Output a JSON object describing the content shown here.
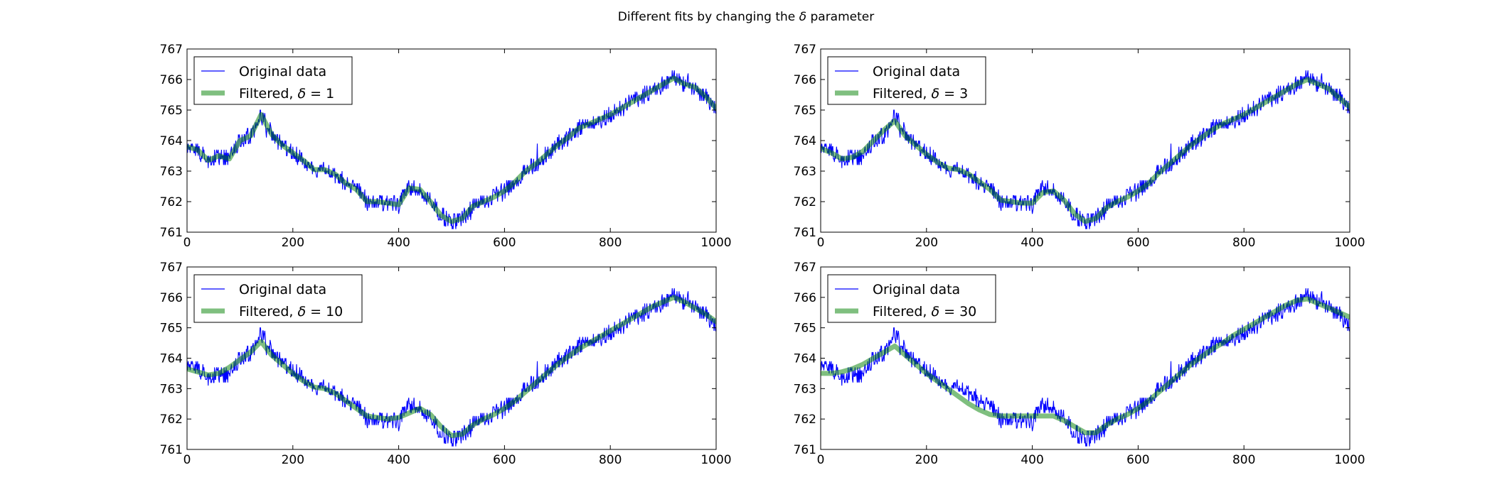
{
  "figure": {
    "title_prefix": "Different fits by changing the ",
    "title_symbol": "δ",
    "title_suffix": " parameter"
  },
  "colors": {
    "original": "#0000ff",
    "filtered": "#008000",
    "filtered_opacity": 0.5,
    "axes": "#000000",
    "background": "#ffffff"
  },
  "chart_data": [
    {
      "type": "line",
      "xlim": [
        0,
        1000
      ],
      "ylim": [
        761,
        767
      ],
      "xticks": [
        0,
        200,
        400,
        600,
        800,
        1000
      ],
      "yticks": [
        761,
        762,
        763,
        764,
        765,
        766,
        767
      ],
      "grid": false,
      "legend_position": "upper-left",
      "series": [
        {
          "name": "Original data",
          "style": "thin-line",
          "color": "#0000ff"
        },
        {
          "name": "Filtered, δ = 1",
          "label_prefix": "Filtered, ",
          "label_symbol": "δ",
          "label_value": " = 1",
          "style": "thick-line",
          "color": "#008000",
          "x": [
            0,
            20,
            40,
            60,
            80,
            100,
            120,
            140,
            160,
            180,
            200,
            220,
            240,
            260,
            280,
            300,
            320,
            340,
            360,
            380,
            400,
            420,
            440,
            460,
            480,
            500,
            520,
            540,
            560,
            580,
            600,
            620,
            640,
            660,
            680,
            700,
            720,
            740,
            760,
            780,
            800,
            820,
            840,
            860,
            880,
            900,
            920,
            940,
            960,
            980,
            1000
          ],
          "y": [
            763.8,
            763.7,
            763.35,
            763.5,
            763.4,
            764.0,
            764.15,
            764.85,
            764.2,
            763.85,
            763.6,
            763.35,
            763.05,
            763.05,
            762.9,
            762.6,
            762.4,
            762.0,
            762.0,
            761.95,
            761.9,
            762.45,
            762.4,
            762.0,
            761.55,
            761.35,
            761.45,
            761.85,
            762.0,
            762.15,
            762.35,
            762.65,
            763.0,
            763.25,
            763.55,
            763.85,
            764.1,
            764.4,
            764.55,
            764.7,
            764.85,
            765.05,
            765.25,
            765.45,
            765.65,
            765.85,
            766.05,
            765.85,
            765.75,
            765.45,
            765.05
          ]
        }
      ]
    },
    {
      "type": "line",
      "xlim": [
        0,
        1000
      ],
      "ylim": [
        761,
        767
      ],
      "xticks": [
        0,
        200,
        400,
        600,
        800,
        1000
      ],
      "yticks": [
        761,
        762,
        763,
        764,
        765,
        766,
        767
      ],
      "grid": false,
      "legend_position": "upper-left",
      "series": [
        {
          "name": "Original data",
          "style": "thin-line",
          "color": "#0000ff"
        },
        {
          "name": "Filtered, δ = 3",
          "label_prefix": "Filtered, ",
          "label_symbol": "δ",
          "label_value": " = 3",
          "style": "thick-line",
          "color": "#008000",
          "x": [
            0,
            20,
            40,
            60,
            80,
            100,
            120,
            140,
            160,
            180,
            200,
            220,
            240,
            260,
            280,
            300,
            320,
            340,
            360,
            380,
            400,
            420,
            440,
            460,
            480,
            500,
            520,
            540,
            560,
            580,
            600,
            620,
            640,
            660,
            680,
            700,
            720,
            740,
            760,
            780,
            800,
            820,
            840,
            860,
            880,
            900,
            920,
            940,
            960,
            980,
            1000
          ],
          "y": [
            763.75,
            763.6,
            763.4,
            763.45,
            763.65,
            764.0,
            764.35,
            764.65,
            764.15,
            763.85,
            763.55,
            763.3,
            763.1,
            763.05,
            762.9,
            762.65,
            762.4,
            762.05,
            762.0,
            761.95,
            761.95,
            762.3,
            762.35,
            762.05,
            761.6,
            761.35,
            761.45,
            761.8,
            762.0,
            762.15,
            762.35,
            762.6,
            762.95,
            763.25,
            763.55,
            763.85,
            764.1,
            764.35,
            764.55,
            764.7,
            764.85,
            765.05,
            765.25,
            765.45,
            765.65,
            765.85,
            766.0,
            765.85,
            765.7,
            765.4,
            765.1
          ]
        }
      ]
    },
    {
      "type": "line",
      "xlim": [
        0,
        1000
      ],
      "ylim": [
        761,
        767
      ],
      "xticks": [
        0,
        200,
        400,
        600,
        800,
        1000
      ],
      "yticks": [
        761,
        762,
        763,
        764,
        765,
        766,
        767
      ],
      "grid": false,
      "legend_position": "upper-left",
      "series": [
        {
          "name": "Original data",
          "style": "thin-line",
          "color": "#0000ff"
        },
        {
          "name": "Filtered, δ = 10",
          "label_prefix": "Filtered, ",
          "label_symbol": "δ",
          "label_value": " = 10",
          "style": "thick-line",
          "color": "#008000",
          "x": [
            0,
            20,
            40,
            60,
            80,
            100,
            120,
            140,
            160,
            180,
            200,
            220,
            240,
            260,
            280,
            300,
            320,
            340,
            360,
            380,
            400,
            420,
            440,
            460,
            480,
            500,
            520,
            540,
            560,
            580,
            600,
            620,
            640,
            660,
            680,
            700,
            720,
            740,
            760,
            780,
            800,
            820,
            840,
            860,
            880,
            900,
            920,
            940,
            960,
            980,
            1000
          ],
          "y": [
            763.65,
            763.55,
            763.45,
            763.5,
            763.7,
            763.95,
            764.2,
            764.55,
            764.1,
            763.8,
            763.5,
            763.25,
            763.05,
            763.0,
            762.85,
            762.6,
            762.35,
            762.1,
            762.05,
            762.0,
            762.05,
            762.2,
            762.35,
            762.15,
            761.75,
            761.45,
            761.5,
            761.8,
            762.0,
            762.15,
            762.35,
            762.6,
            762.9,
            763.2,
            763.5,
            763.8,
            764.05,
            764.3,
            764.5,
            764.7,
            764.9,
            765.1,
            765.3,
            765.5,
            765.7,
            765.85,
            766.0,
            765.85,
            765.65,
            765.45,
            765.2
          ]
        }
      ]
    },
    {
      "type": "line",
      "xlim": [
        0,
        1000
      ],
      "ylim": [
        761,
        767
      ],
      "xticks": [
        0,
        200,
        400,
        600,
        800,
        1000
      ],
      "yticks": [
        761,
        762,
        763,
        764,
        765,
        766,
        767
      ],
      "grid": false,
      "legend_position": "upper-left",
      "series": [
        {
          "name": "Original data",
          "style": "thin-line",
          "color": "#0000ff"
        },
        {
          "name": "Filtered, δ = 30",
          "label_prefix": "Filtered, ",
          "label_symbol": "δ",
          "label_value": " = 30",
          "style": "thick-line",
          "color": "#008000",
          "x": [
            0,
            20,
            40,
            60,
            80,
            100,
            120,
            140,
            160,
            180,
            200,
            220,
            240,
            260,
            280,
            300,
            320,
            340,
            360,
            380,
            400,
            420,
            440,
            460,
            480,
            500,
            520,
            540,
            560,
            580,
            600,
            620,
            640,
            660,
            680,
            700,
            720,
            740,
            760,
            780,
            800,
            820,
            840,
            860,
            880,
            900,
            920,
            940,
            960,
            980,
            1000
          ],
          "y": [
            763.5,
            763.5,
            763.55,
            763.65,
            763.8,
            764.0,
            764.2,
            764.4,
            764.1,
            763.8,
            763.5,
            763.25,
            763.0,
            762.75,
            762.5,
            762.3,
            762.15,
            762.1,
            762.1,
            762.1,
            762.1,
            762.1,
            762.1,
            761.95,
            761.75,
            761.55,
            761.55,
            761.8,
            762.0,
            762.15,
            762.35,
            762.6,
            762.9,
            763.2,
            763.5,
            763.8,
            764.05,
            764.3,
            764.5,
            764.75,
            764.95,
            765.15,
            765.35,
            765.55,
            765.75,
            765.9,
            765.95,
            765.8,
            765.65,
            765.5,
            765.35
          ]
        }
      ]
    }
  ]
}
